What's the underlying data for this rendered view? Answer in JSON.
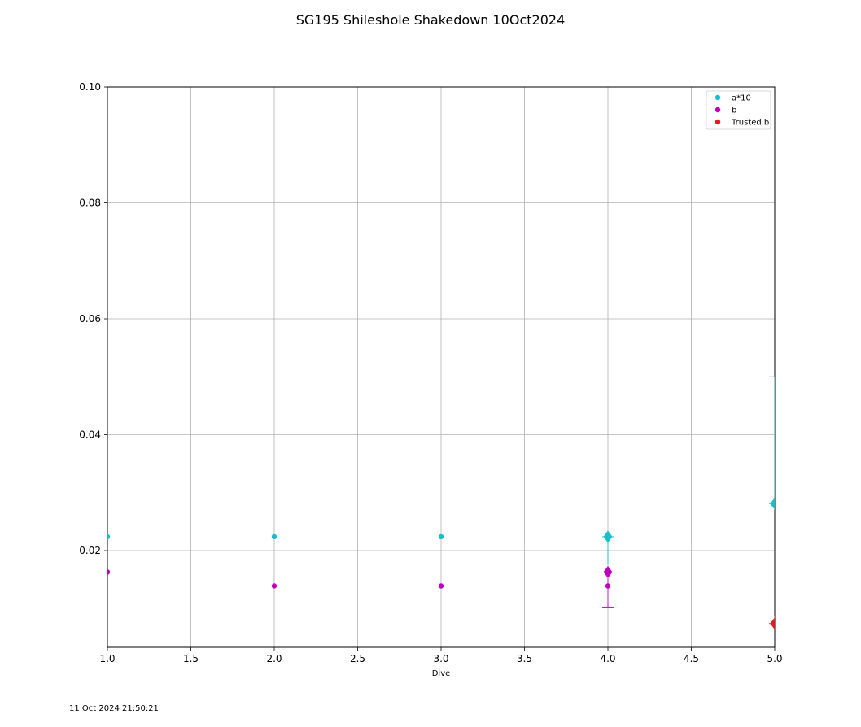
{
  "chart_data": {
    "type": "scatter",
    "title": "SG195 Shileshole Shakedown 10Oct2024",
    "xlabel": "Dive",
    "ylabel": "",
    "xlim": [
      1.0,
      5.0
    ],
    "ylim": [
      0.0033,
      0.1
    ],
    "xticks": [
      "1.0",
      "1.5",
      "2.0",
      "2.5",
      "3.0",
      "3.5",
      "4.0",
      "4.5",
      "5.0"
    ],
    "yticks": [
      "0.02",
      "0.04",
      "0.06",
      "0.08",
      "0.10"
    ],
    "grid": true,
    "legend_position": "top-right",
    "series": [
      {
        "name": "a*10",
        "color": "#17becf",
        "points": [
          {
            "x": 1,
            "y": 0.0224
          },
          {
            "x": 2,
            "y": 0.0224
          },
          {
            "x": 3,
            "y": 0.0224
          },
          {
            "x": 4,
            "y": 0.0224
          }
        ],
        "summary": [
          {
            "x": 4,
            "y": 0.0224,
            "err_low": 0.0177,
            "err_high": 0.0224
          },
          {
            "x": 5,
            "y": 0.0281,
            "err_low": 0.0281,
            "err_high": 0.05
          }
        ]
      },
      {
        "name": "b",
        "color": "#bf00bf",
        "points": [
          {
            "x": 1,
            "y": 0.0163
          },
          {
            "x": 2,
            "y": 0.0139
          },
          {
            "x": 3,
            "y": 0.0139
          },
          {
            "x": 4,
            "y": 0.0139
          }
        ],
        "summary": [
          {
            "x": 4,
            "y": 0.0163,
            "err_low": 0.0101,
            "err_high": 0.0163
          }
        ]
      },
      {
        "name": "Trusted b",
        "color": "#e41a1c",
        "points": [],
        "summary": [
          {
            "x": 5,
            "y": 0.0074,
            "err_low": 0.0074,
            "err_high": 0.0087
          }
        ]
      }
    ]
  },
  "footer": {
    "timestamp": "11 Oct 2024 21:50:21"
  }
}
